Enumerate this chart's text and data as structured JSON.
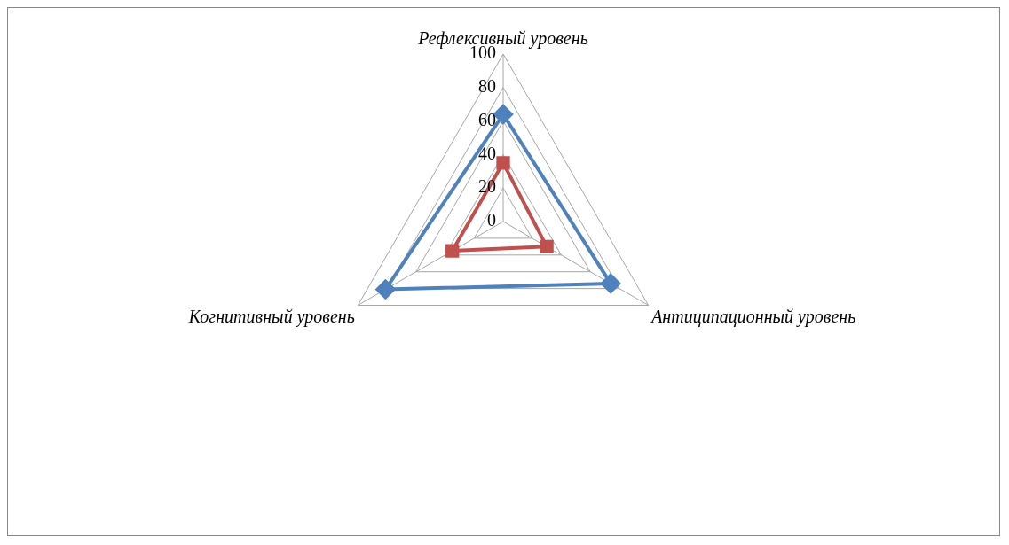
{
  "chart_data": {
    "type": "radar",
    "categories": [
      "Рефлексивный уровень",
      "Антиципационный уровень",
      "Когнитивный уровень"
    ],
    "series": [
      {
        "color": "#4f81bd",
        "marker": "diamond",
        "values": [
          64,
          74,
          81
        ]
      },
      {
        "color": "#c0504d",
        "marker": "square",
        "values": [
          35,
          30,
          35
        ]
      }
    ],
    "ylim": [
      0,
      100
    ],
    "yticks": [
      0,
      20,
      40,
      60,
      80,
      100
    ],
    "grid": true,
    "legend": false
  }
}
